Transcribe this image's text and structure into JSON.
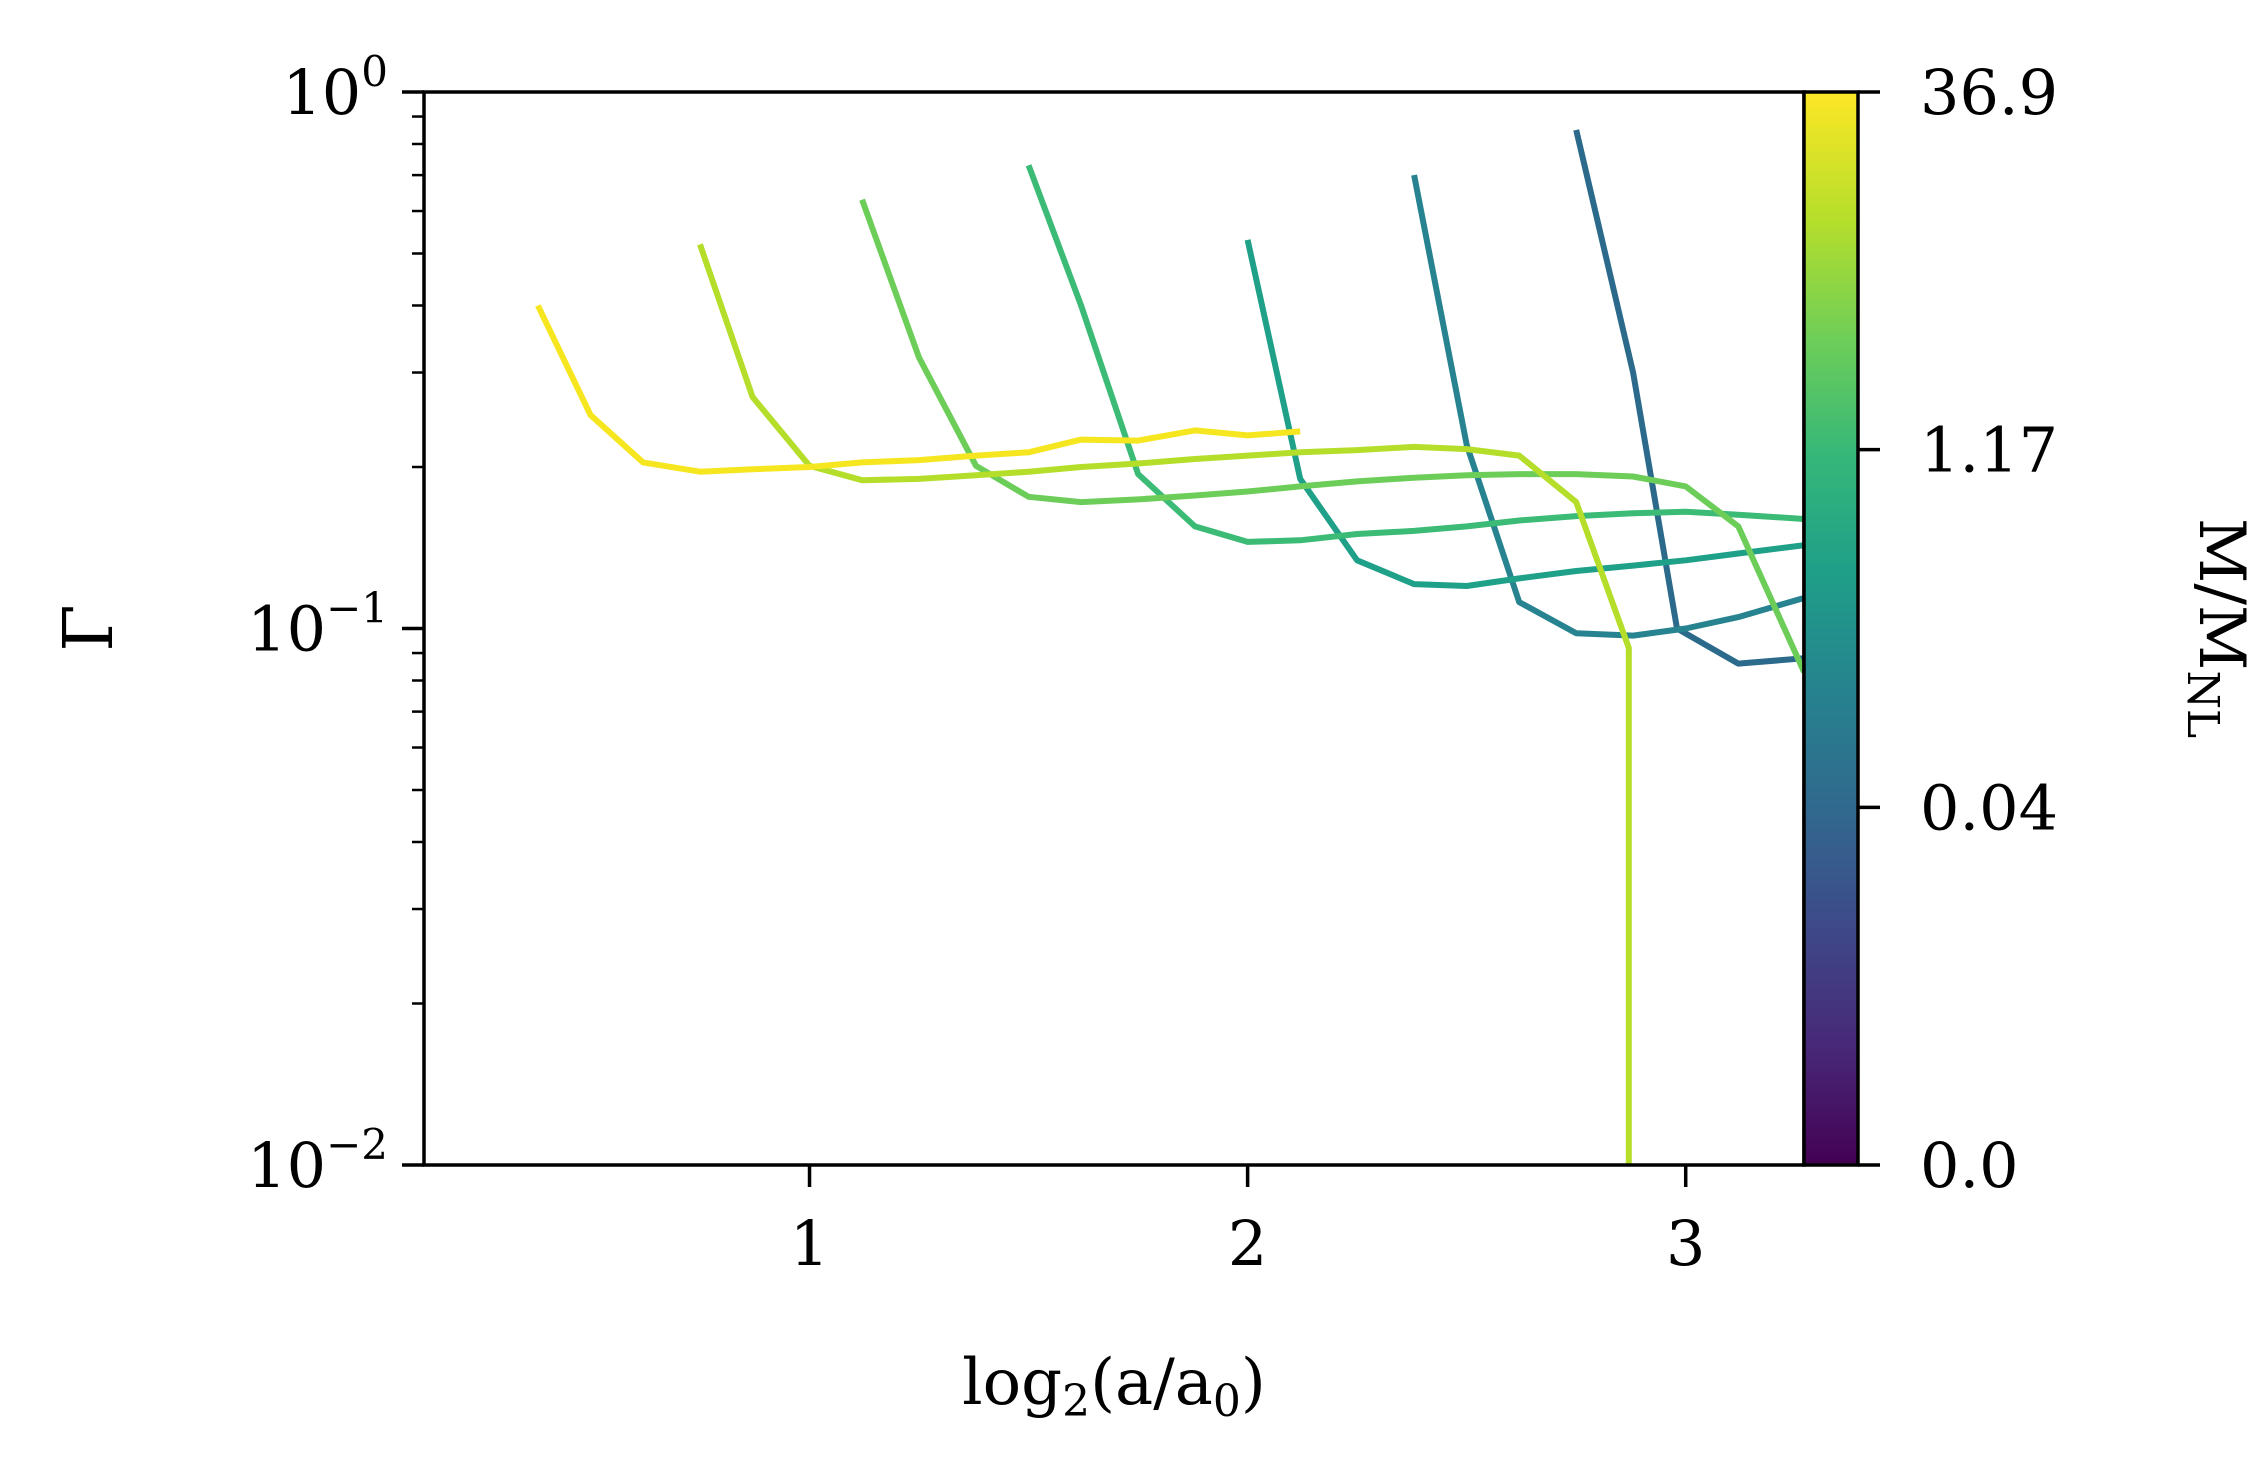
{
  "chart_data": {
    "type": "line",
    "xlabel": "log",
    "xlabel_sub1": "2",
    "xlabel_mid": "(a/a",
    "xlabel_sub2": "0",
    "xlabel_end": ")",
    "ylabel": "Γ",
    "yscale": "log",
    "xlim": [
      0.12,
      3.27
    ],
    "ylim": [
      0.01,
      1.0
    ],
    "x_ticks": [
      1,
      2,
      3
    ],
    "x_tick_labels": [
      "1",
      "2",
      "3"
    ],
    "y_ticks": [
      {
        "value": 1.0,
        "base": "10",
        "exp": "0"
      },
      {
        "value": 0.1,
        "base": "10",
        "exp": "−1"
      },
      {
        "value": 0.01,
        "base": "10",
        "exp": "−2"
      }
    ],
    "grid": false,
    "colorbar": {
      "label": "M/M",
      "label_sub": "NL",
      "colormap": "viridis",
      "tick_labels": [
        "0.0",
        "0.04",
        "1.17",
        "36.9"
      ]
    },
    "series": [
      {
        "color": "#2c6a8c",
        "x": [
          2.75,
          2.88,
          2.98,
          3.12,
          3.27
        ],
        "y": [
          0.85,
          0.3,
          0.1,
          0.086,
          0.088
        ]
      },
      {
        "color": "#26838f",
        "x": [
          2.38,
          2.5,
          2.62,
          2.75,
          2.88,
          3.0,
          3.12,
          3.27
        ],
        "y": [
          0.7,
          0.22,
          0.112,
          0.098,
          0.097,
          0.1,
          0.105,
          0.114
        ]
      },
      {
        "color": "#1fa088",
        "x": [
          2.0,
          2.12,
          2.25,
          2.38,
          2.5,
          2.62,
          2.75,
          2.88,
          3.0,
          3.12,
          3.27
        ],
        "y": [
          0.53,
          0.19,
          0.134,
          0.121,
          0.12,
          0.124,
          0.128,
          0.131,
          0.134,
          0.138,
          0.143
        ]
      },
      {
        "color": "#3bbb75",
        "x": [
          1.5,
          1.62,
          1.75,
          1.88,
          2.0,
          2.12,
          2.25,
          2.38,
          2.5,
          2.62,
          2.75,
          2.88,
          3.0,
          3.12,
          3.27
        ],
        "y": [
          0.73,
          0.4,
          0.194,
          0.155,
          0.145,
          0.146,
          0.15,
          0.152,
          0.155,
          0.159,
          0.162,
          0.164,
          0.165,
          0.163,
          0.16
        ]
      },
      {
        "color": "#6cce59",
        "x": [
          1.12,
          1.25,
          1.38,
          1.5,
          1.62,
          1.75,
          1.88,
          2.0,
          2.12,
          2.25,
          2.38,
          2.5,
          2.62,
          2.75,
          2.88,
          3.0,
          3.12,
          3.27
        ],
        "y": [
          0.63,
          0.32,
          0.201,
          0.176,
          0.172,
          0.174,
          0.177,
          0.18,
          0.184,
          0.188,
          0.191,
          0.193,
          0.194,
          0.194,
          0.192,
          0.184,
          0.155,
          0.083
        ]
      },
      {
        "color": "#b5de2b",
        "x": [
          0.75,
          0.87,
          1.0,
          1.12,
          1.25,
          1.38,
          1.5,
          1.62,
          1.75,
          1.88,
          2.0,
          2.12,
          2.25,
          2.38,
          2.5,
          2.62,
          2.75,
          2.87,
          2.87
        ],
        "y": [
          0.52,
          0.27,
          0.201,
          0.189,
          0.19,
          0.193,
          0.196,
          0.2,
          0.203,
          0.207,
          0.21,
          0.213,
          0.215,
          0.218,
          0.216,
          0.21,
          0.172,
          0.092,
          0.01
        ]
      },
      {
        "color": "#f6e620",
        "x": [
          0.38,
          0.5,
          0.62,
          0.75,
          0.87,
          1.0,
          1.12,
          1.25,
          1.38,
          1.5,
          1.62,
          1.75,
          1.88,
          2.0,
          2.12
        ],
        "y": [
          0.4,
          0.25,
          0.204,
          0.196,
          0.198,
          0.2,
          0.204,
          0.206,
          0.21,
          0.213,
          0.225,
          0.224,
          0.234,
          0.229,
          0.233
        ]
      }
    ]
  }
}
